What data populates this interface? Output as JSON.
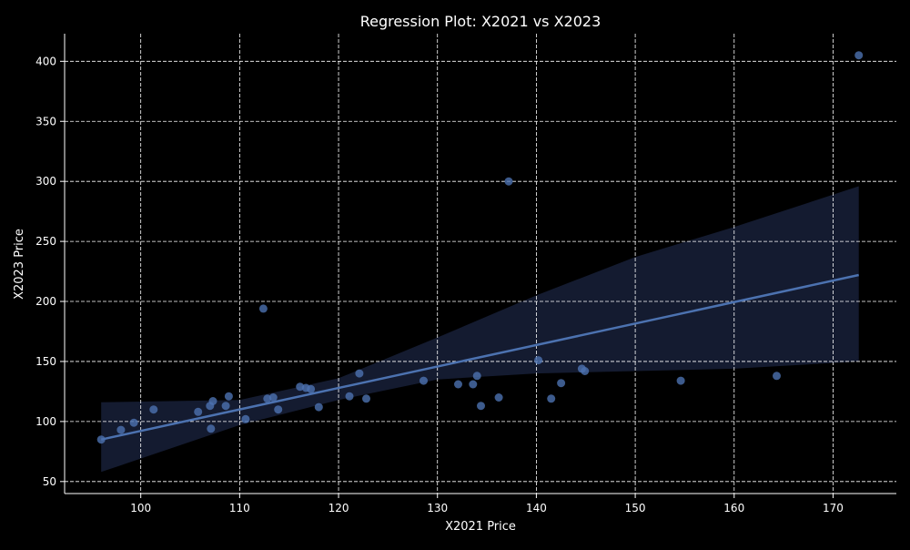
{
  "colors": {
    "background": "#000000",
    "text": "#ffffff",
    "grid": "#ffffff",
    "axis": "#ffffff",
    "points": "#4c72b0",
    "regression_line": "#4c72b0",
    "confidence_band": "#141b30"
  },
  "chart_data": {
    "type": "scatter",
    "title": "Regression Plot: X2021 vs X2023",
    "xlabel": "X2021 Price",
    "ylabel": "X2023 Price",
    "xlim": [
      92.3,
      176.4
    ],
    "ylim": [
      40,
      423
    ],
    "xticks": [
      100,
      110,
      120,
      130,
      140,
      150,
      160,
      170
    ],
    "yticks": [
      50,
      100,
      150,
      200,
      250,
      300,
      350,
      400
    ],
    "grid": true,
    "grid_style": "dashed",
    "legend": "none",
    "points": [
      {
        "x": 96.0,
        "y": 85
      },
      {
        "x": 98.0,
        "y": 93
      },
      {
        "x": 99.3,
        "y": 99
      },
      {
        "x": 101.3,
        "y": 110
      },
      {
        "x": 105.8,
        "y": 108
      },
      {
        "x": 107.0,
        "y": 113
      },
      {
        "x": 107.1,
        "y": 94
      },
      {
        "x": 107.3,
        "y": 117
      },
      {
        "x": 108.6,
        "y": 113
      },
      {
        "x": 108.9,
        "y": 121
      },
      {
        "x": 110.6,
        "y": 102
      },
      {
        "x": 112.4,
        "y": 194
      },
      {
        "x": 112.8,
        "y": 119
      },
      {
        "x": 113.4,
        "y": 120
      },
      {
        "x": 113.9,
        "y": 110
      },
      {
        "x": 116.1,
        "y": 129
      },
      {
        "x": 116.7,
        "y": 128
      },
      {
        "x": 117.2,
        "y": 127
      },
      {
        "x": 118.0,
        "y": 112
      },
      {
        "x": 121.1,
        "y": 121
      },
      {
        "x": 122.1,
        "y": 140
      },
      {
        "x": 122.8,
        "y": 119
      },
      {
        "x": 128.6,
        "y": 134
      },
      {
        "x": 132.1,
        "y": 131
      },
      {
        "x": 133.6,
        "y": 131
      },
      {
        "x": 134.0,
        "y": 138
      },
      {
        "x": 134.4,
        "y": 113
      },
      {
        "x": 136.2,
        "y": 120
      },
      {
        "x": 137.2,
        "y": 300
      },
      {
        "x": 140.2,
        "y": 151
      },
      {
        "x": 141.5,
        "y": 119
      },
      {
        "x": 142.5,
        "y": 132
      },
      {
        "x": 144.6,
        "y": 144
      },
      {
        "x": 144.9,
        "y": 142
      },
      {
        "x": 154.6,
        "y": 134
      },
      {
        "x": 164.3,
        "y": 138
      },
      {
        "x": 172.6,
        "y": 405
      }
    ],
    "regression_line": {
      "x": [
        96.0,
        172.6
      ],
      "y": [
        85,
        222
      ]
    },
    "confidence_band": {
      "x": [
        96.0,
        110,
        120,
        130,
        140,
        150,
        160,
        172.6
      ],
      "upper": [
        116,
        118,
        136,
        170,
        205,
        237,
        262,
        296
      ],
      "lower": [
        58,
        97,
        118,
        135,
        140,
        142,
        144,
        150
      ]
    }
  }
}
